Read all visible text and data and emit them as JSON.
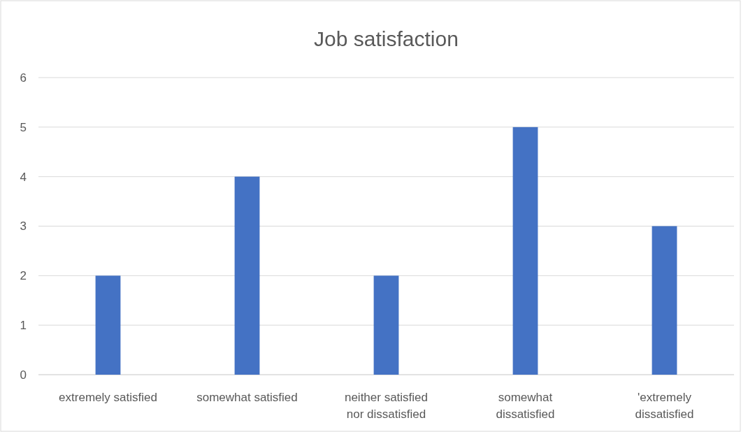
{
  "chart_data": {
    "type": "bar",
    "title": "Job satisfaction",
    "categories": [
      "extremely satisfied",
      "somewhat satisfied",
      "neither satisfied nor dissatisfied",
      "somewhat dissatisfied",
      "'extremely dissatisfied"
    ],
    "values": [
      2,
      4,
      2,
      5,
      3
    ],
    "color": "#4472c4",
    "ylim": [
      0,
      6
    ],
    "yticks": [
      0,
      1,
      2,
      3,
      4,
      5,
      6
    ],
    "grid": "y"
  }
}
